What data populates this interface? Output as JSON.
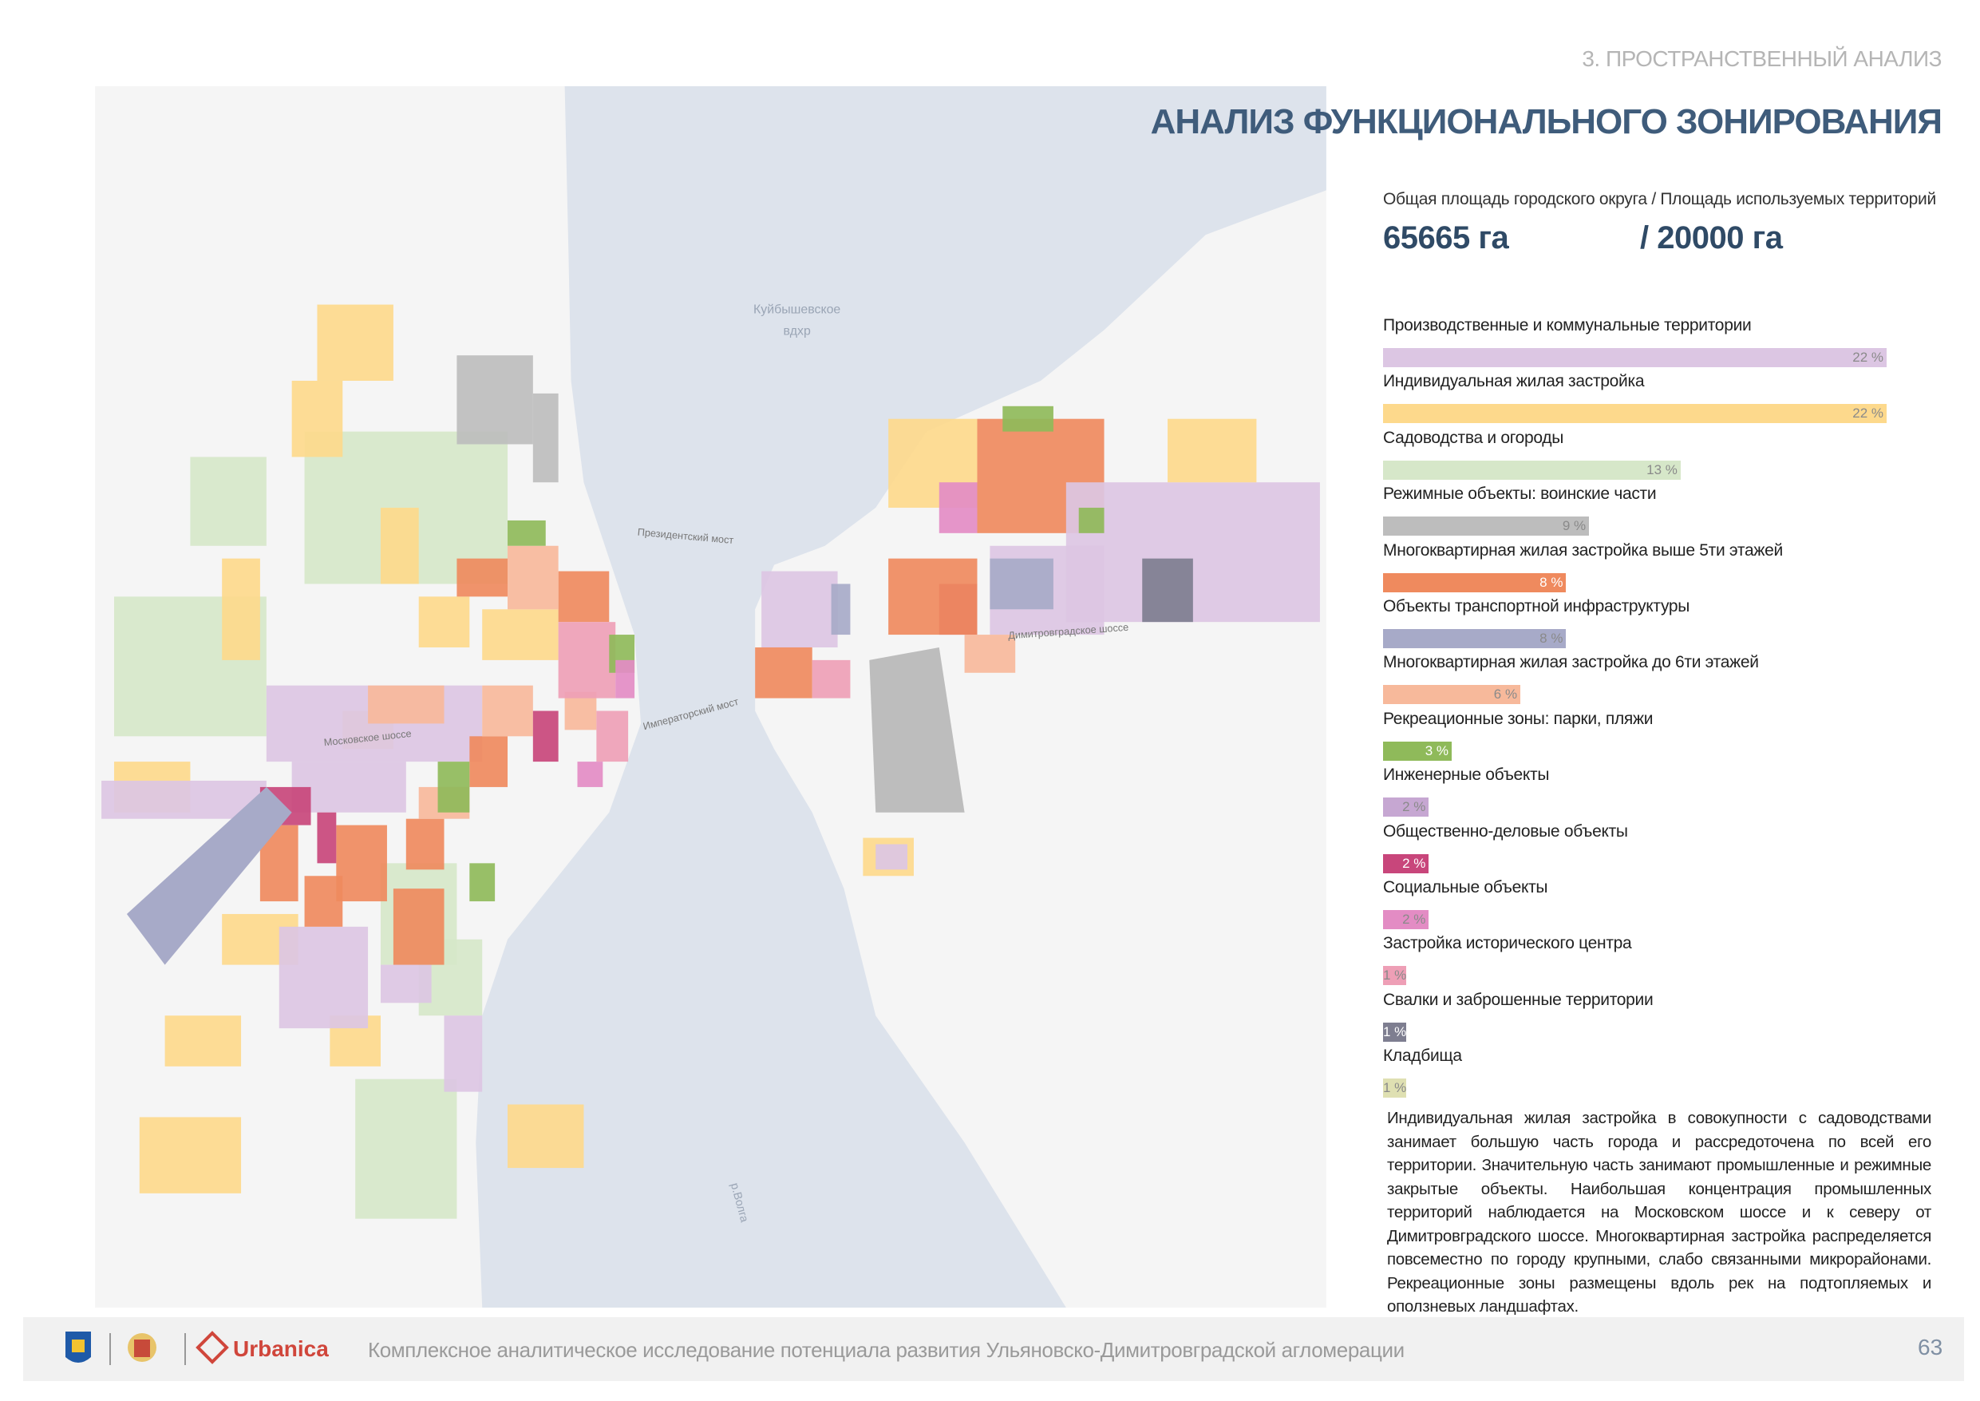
{
  "header": {
    "section": "3. ПРОСТРАНСТВЕННЫЙ АНАЛИЗ",
    "title": "АНАЛИЗ ФУНКЦИОНАЛЬНОГО ЗОНИРОВАНИЯ"
  },
  "area": {
    "label": "Общая площадь городского округа / Площадь используемых территорий",
    "total": "65665 га",
    "used": "/ 20000 га"
  },
  "map": {
    "reservoir": [
      "Куйбышевское",
      "вдхр"
    ],
    "bridge_1": "Президентский мост",
    "bridge_2": "Императорский мост",
    "road_1": "Московское шоссе",
    "road_2": "Димитровградское шоссе",
    "river": "р.Волга"
  },
  "chart_data": {
    "type": "bar",
    "orientation": "horizontal",
    "categories": [
      "Производственные и коммунальные территории",
      "Индивидуальная жилая застройка",
      "Садоводства и огороды",
      "Режимные объекты: воинские части",
      "Многоквартирная жилая застройка выше 5ти этажей",
      "Объекты транспортной инфраструктуры",
      "Многоквартирная жилая застройка до 6ти этажей",
      "Рекреационные зоны: парки, пляжи",
      "Инженерные объекты",
      "Общественно-деловые объекты",
      "Социальные объекты",
      "Застройка исторического центра",
      "Свалки и заброшенные территории",
      "Кладбища"
    ],
    "values": [
      22,
      22,
      13,
      9,
      8,
      8,
      6,
      3,
      2,
      2,
      2,
      1,
      1,
      1
    ],
    "value_labels": [
      "22 %",
      "22 %",
      "13 %",
      "9 %",
      "8 %",
      "8 %",
      "6 %",
      "3 %",
      "2 %",
      "2 %",
      "2 %",
      "1 %",
      "1 %",
      "1 %"
    ],
    "colors": [
      "#dcc6e3",
      "#fdd98c",
      "#d6e7c9",
      "#bdbdbd",
      "#ef8a5e",
      "#a7aac8",
      "#f7b99b",
      "#8fba5a",
      "#c6a7d2",
      "#c8467b",
      "#e38cc4",
      "#ee9fb6",
      "#7e7e90",
      "#dfe0b2"
    ]
  },
  "text": "Индивидуальная жилая застройка в совокупности с садоводствами занимает большую часть города и рассредоточена по всей его территории. Значительную часть занимают промышленные и режимные закрытые объекты. Наибольшая концентрация промышленных территорий наблюдается на Московском шоссе и к северу от Димитровградского шоссе. Многоквартирная застройка распределяется повсеместно по городу крупными, слабо связанными микрорайонами. Рекреационные зоны размещены вдоль рек на подтопляемых и оползневых ландшафтах.",
  "footer": {
    "brand": "Urbanica",
    "caption": "Комплексное аналитическое исследование потенциала развития Ульяновско-Димитровградской агломерации",
    "page": "63"
  }
}
